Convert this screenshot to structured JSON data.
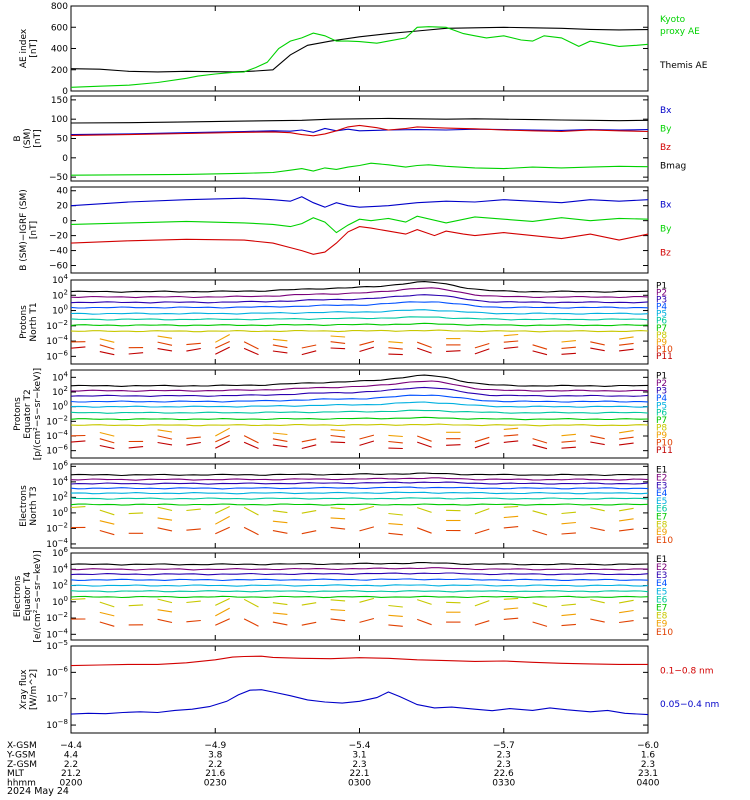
{
  "colors": {
    "black": "#000000",
    "blue": "#0000c8",
    "green": "#00d200",
    "red": "#d20000",
    "P": [
      "#000000",
      "#7a007a",
      "#2a00b0",
      "#0050ff",
      "#00b0e0",
      "#00c8a0",
      "#00c800",
      "#c8c800",
      "#f0a000",
      "#e04000",
      "#c00000"
    ]
  },
  "chart_data": [
    {
      "type": "line",
      "id": "p1",
      "ylabel": [
        "AE index",
        "[nT]"
      ],
      "ylim": [
        0,
        800
      ],
      "yscale": "linear",
      "yticks": [
        0,
        200,
        400,
        600,
        800
      ],
      "ytick_labels": [
        "0",
        "200",
        "400",
        "600",
        "800"
      ],
      "legend": [
        {
          "text": "Kyoto",
          "color": "#00d200"
        },
        {
          "text": "proxy AE",
          "color": "#00d200"
        },
        {
          "text": "Themis AE",
          "color": "#000000"
        }
      ],
      "series": [
        {
          "name": "Themis AE",
          "color": "#000000",
          "x": [
            0,
            5,
            10,
            15,
            20,
            25,
            28,
            32,
            35,
            38,
            41,
            45,
            50,
            55,
            60,
            65,
            70,
            75,
            80,
            85,
            90,
            95,
            100
          ],
          "y": [
            210,
            205,
            185,
            180,
            185,
            182,
            180,
            188,
            200,
            340,
            430,
            470,
            510,
            540,
            565,
            590,
            595,
            600,
            595,
            590,
            580,
            575,
            578
          ]
        },
        {
          "name": "proxy AE",
          "color": "#00d200",
          "x": [
            0,
            5,
            10,
            15,
            20,
            22,
            25,
            27,
            28,
            30,
            32,
            34,
            36,
            38,
            40,
            42,
            44,
            46,
            48,
            50,
            53,
            55,
            58,
            60,
            62,
            65,
            68,
            70,
            72,
            75,
            78,
            80,
            82,
            85,
            88,
            90,
            92,
            95,
            98,
            100
          ],
          "y": [
            35,
            45,
            55,
            80,
            120,
            140,
            160,
            170,
            175,
            180,
            220,
            270,
            400,
            470,
            500,
            545,
            520,
            470,
            470,
            465,
            450,
            470,
            500,
            600,
            605,
            600,
            540,
            520,
            500,
            520,
            480,
            470,
            520,
            500,
            420,
            470,
            450,
            420,
            430,
            440
          ]
        }
      ]
    },
    {
      "type": "line",
      "id": "p2",
      "ylabel": [
        "B",
        "(SM)",
        "[nT]"
      ],
      "ylim": [
        -60,
        160
      ],
      "yscale": "linear",
      "yticks": [
        -50,
        0,
        50,
        100,
        150
      ],
      "ytick_labels": [
        "−50",
        "0",
        "50",
        "100",
        "150"
      ],
      "legend": [
        {
          "text": "Bx",
          "color": "#0000c8"
        },
        {
          "text": "By",
          "color": "#00d200"
        },
        {
          "text": "Bz",
          "color": "#d20000"
        },
        {
          "text": "Bmag",
          "color": "#000000"
        }
      ],
      "series": [
        {
          "name": "Bmag",
          "color": "#000000",
          "x": [
            0,
            10,
            20,
            30,
            35,
            40,
            45,
            50,
            55,
            60,
            65,
            70,
            75,
            80,
            85,
            90,
            95,
            100
          ],
          "y": [
            90,
            91,
            93,
            95,
            96,
            97,
            100,
            101,
            102,
            101,
            100,
            101,
            100,
            99,
            98,
            97,
            96,
            97
          ]
        },
        {
          "name": "Bx",
          "color": "#0000c8",
          "x": [
            0,
            10,
            20,
            30,
            35,
            38,
            40,
            42,
            44,
            46,
            48,
            50,
            55,
            60,
            65,
            70,
            75,
            80,
            85,
            90,
            95,
            100
          ],
          "y": [
            60,
            62,
            65,
            68,
            70,
            69,
            72,
            66,
            76,
            70,
            74,
            70,
            72,
            73,
            72,
            74,
            73,
            72,
            71,
            73,
            72,
            73
          ]
        },
        {
          "name": "Bz",
          "color": "#d20000",
          "x": [
            0,
            10,
            20,
            30,
            35,
            38,
            40,
            42,
            44,
            46,
            48,
            50,
            53,
            55,
            58,
            60,
            65,
            70,
            75,
            80,
            85,
            90,
            95,
            100
          ],
          "y": [
            58,
            60,
            63,
            66,
            67,
            65,
            60,
            57,
            62,
            70,
            80,
            84,
            78,
            72,
            76,
            80,
            77,
            75,
            72,
            70,
            68,
            72,
            70,
            68
          ]
        },
        {
          "name": "By",
          "color": "#00d200",
          "x": [
            0,
            10,
            20,
            30,
            35,
            38,
            40,
            42,
            44,
            46,
            48,
            50,
            52,
            55,
            58,
            60,
            62,
            65,
            70,
            75,
            80,
            85,
            90,
            95,
            100
          ],
          "y": [
            -45,
            -44,
            -43,
            -40,
            -38,
            -32,
            -28,
            -34,
            -26,
            -30,
            -24,
            -20,
            -14,
            -18,
            -24,
            -20,
            -18,
            -22,
            -26,
            -28,
            -24,
            -26,
            -24,
            -22,
            -23
          ]
        }
      ]
    },
    {
      "type": "line",
      "id": "p3",
      "ylabel": [
        "B (SM)−IGRF (SM)",
        "[nT]"
      ],
      "ylim": [
        -70,
        45
      ],
      "yscale": "linear",
      "yticks": [
        -60,
        -40,
        -20,
        0,
        20,
        40
      ],
      "ytick_labels": [
        "−60",
        "−40",
        "−20",
        "0",
        "20",
        "40"
      ],
      "legend": [
        {
          "text": "Bx",
          "color": "#0000c8"
        },
        {
          "text": "By",
          "color": "#00d200"
        },
        {
          "text": "Bz",
          "color": "#d20000"
        }
      ],
      "series": [
        {
          "name": "Bx",
          "color": "#0000c8",
          "x": [
            0,
            10,
            20,
            30,
            35,
            38,
            40,
            42,
            44,
            46,
            48,
            50,
            55,
            60,
            65,
            70,
            75,
            80,
            85,
            90,
            95,
            100
          ],
          "y": [
            20,
            25,
            28,
            30,
            28,
            26,
            32,
            24,
            18,
            24,
            20,
            18,
            20,
            24,
            26,
            25,
            28,
            26,
            24,
            28,
            26,
            28
          ]
        },
        {
          "name": "By",
          "color": "#00d200",
          "x": [
            0,
            10,
            20,
            30,
            35,
            38,
            40,
            42,
            44,
            46,
            48,
            50,
            52,
            55,
            58,
            60,
            65,
            70,
            75,
            80,
            85,
            90,
            95,
            100
          ],
          "y": [
            -5,
            -3,
            -1,
            -3,
            -5,
            -8,
            -4,
            4,
            -2,
            -16,
            -6,
            2,
            0,
            3,
            -2,
            6,
            -3,
            5,
            2,
            -1,
            4,
            0,
            3,
            2
          ]
        },
        {
          "name": "Bz",
          "color": "#d20000",
          "x": [
            0,
            10,
            20,
            30,
            35,
            38,
            40,
            42,
            44,
            46,
            48,
            50,
            52,
            55,
            58,
            60,
            63,
            65,
            68,
            70,
            75,
            80,
            85,
            90,
            95,
            100
          ],
          "y": [
            -30,
            -27,
            -25,
            -26,
            -30,
            -36,
            -40,
            -45,
            -42,
            -30,
            -15,
            -8,
            -10,
            -14,
            -18,
            -12,
            -20,
            -14,
            -18,
            -20,
            -16,
            -20,
            -24,
            -18,
            -26,
            -18
          ]
        }
      ]
    },
    {
      "type": "line",
      "id": "p4",
      "ylabel": [
        "Protons",
        "North T1"
      ],
      "yscale": "log",
      "ylim": [
        1e-07,
        10000.0
      ],
      "ytick_exp": [
        -6,
        -4,
        -2,
        0,
        2,
        4
      ],
      "legend_prefix": "P",
      "channels": [
        {
          "name": "P1",
          "base": 300,
          "bump": 18
        },
        {
          "name": "P2",
          "base": 60,
          "bump": 15
        },
        {
          "name": "P3",
          "base": 12,
          "bump": 10
        },
        {
          "name": "P4",
          "base": 2.5,
          "bump": 6
        },
        {
          "name": "P5",
          "base": 0.4,
          "bump": 3
        },
        {
          "name": "P6",
          "base": 0.07,
          "bump": 2
        },
        {
          "name": "P7",
          "base": 0.012,
          "bump": 1.5
        },
        {
          "name": "P8",
          "base": 0.002,
          "bump": 1.2
        },
        {
          "name": "P9",
          "base": 0.0002,
          "bump": 1
        },
        {
          "name": "P10",
          "base": 3e-05,
          "bump": 1
        },
        {
          "name": "P11",
          "base": 5e-06,
          "bump": 1
        }
      ]
    },
    {
      "type": "line",
      "id": "p5",
      "ylabel": [
        "Protons",
        "Equator T2",
        "[p/(cm²−s−sr−keV)]"
      ],
      "yscale": "log",
      "ylim": [
        1e-07,
        100000.0
      ],
      "ytick_exp": [
        -6,
        -4,
        -2,
        0,
        2,
        4
      ],
      "legend_prefix": "P",
      "channels": [
        {
          "name": "P1",
          "base": 700,
          "bump": 25
        },
        {
          "name": "P2",
          "base": 150,
          "bump": 20
        },
        {
          "name": "P3",
          "base": 30,
          "bump": 14
        },
        {
          "name": "P4",
          "base": 5,
          "bump": 8
        },
        {
          "name": "P5",
          "base": 1,
          "bump": 4
        },
        {
          "name": "P6",
          "base": 0.15,
          "bump": 2
        },
        {
          "name": "P7",
          "base": 0.02,
          "bump": 1.5
        },
        {
          "name": "P8",
          "base": 0.003,
          "bump": 1.2
        },
        {
          "name": "P9",
          "base": 0.0003,
          "bump": 1
        },
        {
          "name": "P10",
          "base": 4e-05,
          "bump": 1
        },
        {
          "name": "P11",
          "base": 6e-06,
          "bump": 1
        }
      ]
    },
    {
      "type": "line",
      "id": "p6",
      "ylabel": [
        "Electrons",
        "North T3"
      ],
      "yscale": "log",
      "ylim": [
        3e-05,
        2000000.0
      ],
      "ytick_exp": [
        -4,
        -2,
        0,
        2,
        4,
        6
      ],
      "legend_prefix": "E",
      "channels": [
        {
          "name": "E1",
          "base": 80000,
          "bump": 1.5
        },
        {
          "name": "E2",
          "base": 20000,
          "bump": 1.5
        },
        {
          "name": "E3",
          "base": 6000,
          "bump": 1.5
        },
        {
          "name": "E4",
          "base": 1500,
          "bump": 1.3
        },
        {
          "name": "E5",
          "base": 350,
          "bump": 1.2
        },
        {
          "name": "E6",
          "base": 70,
          "bump": 1.1
        },
        {
          "name": "E7",
          "base": 12,
          "bump": 1
        },
        {
          "name": "E8",
          "base": 2,
          "bump": 1
        },
        {
          "name": "E9",
          "base": 0.1,
          "bump": 1
        },
        {
          "name": "E10",
          "base": 0.005,
          "bump": 1
        }
      ]
    },
    {
      "type": "line",
      "id": "p7",
      "ylabel": [
        "Electrons",
        "Equator T4",
        "[e/(cm²−s−sr−keV)]"
      ],
      "yscale": "log",
      "ylim": [
        2e-05,
        1000000.0
      ],
      "ytick_exp": [
        -4,
        -2,
        0,
        2,
        4,
        6
      ],
      "legend_prefix": "E",
      "channels": [
        {
          "name": "E1",
          "base": 40000,
          "bump": 1.5
        },
        {
          "name": "E2",
          "base": 10000,
          "bump": 1.4
        },
        {
          "name": "E3",
          "base": 2500,
          "bump": 1.3
        },
        {
          "name": "E4",
          "base": 500,
          "bump": 1.2
        },
        {
          "name": "E5",
          "base": 100,
          "bump": 1.1
        },
        {
          "name": "E6",
          "base": 20,
          "bump": 1
        },
        {
          "name": "E7",
          "base": 4,
          "bump": 1
        },
        {
          "name": "E8",
          "base": 0.8,
          "bump": 1
        },
        {
          "name": "E9",
          "base": 0.05,
          "bump": 1
        },
        {
          "name": "E10",
          "base": 0.003,
          "bump": 1
        }
      ]
    },
    {
      "type": "line",
      "id": "p8",
      "ylabel": [
        "Xray flux",
        "[W/m^2]"
      ],
      "yscale": "log",
      "ylim": [
        5e-09,
        1e-05
      ],
      "ytick_exp": [
        -8,
        -7,
        -6,
        -5
      ],
      "legend": [
        {
          "text": "0.1−0.8 nm",
          "color": "#d20000"
        },
        {
          "text": "0.05−0.4 nm",
          "color": "#0000c8"
        }
      ],
      "series": [
        {
          "name": "0.1−0.8 nm",
          "color": "#d20000",
          "x": [
            0,
            5,
            10,
            15,
            20,
            25,
            28,
            30,
            33,
            35,
            40,
            45,
            50,
            55,
            60,
            65,
            70,
            75,
            80,
            85,
            90,
            95,
            100
          ],
          "y": [
            1.8e-06,
            1.9e-06,
            2e-06,
            2e-06,
            2.3e-06,
            3e-06,
            3.8e-06,
            4e-06,
            4.1e-06,
            3.7e-06,
            3.4e-06,
            3.3e-06,
            3.6e-06,
            3.4e-06,
            3e-06,
            2.8e-06,
            2.6e-06,
            2.7e-06,
            2.4e-06,
            2.2e-06,
            2.1e-06,
            2e-06,
            2e-06
          ]
        },
        {
          "name": "0.05−0.4 nm",
          "color": "#0000c8",
          "x": [
            0,
            3,
            6,
            9,
            12,
            15,
            18,
            21,
            24,
            27,
            29,
            31,
            33,
            35,
            38,
            41,
            44,
            47,
            50,
            53,
            55,
            57,
            60,
            63,
            66,
            70,
            73,
            76,
            80,
            83,
            86,
            90,
            93,
            96,
            100
          ],
          "y": [
            2.6e-08,
            2.8e-08,
            2.7e-08,
            3e-08,
            3.2e-08,
            3e-08,
            3.6e-08,
            4e-08,
            5e-08,
            8e-08,
            1.4e-07,
            2.1e-07,
            2.2e-07,
            1.8e-07,
            1.3e-07,
            9e-08,
            7.5e-08,
            6.8e-08,
            8e-08,
            1.1e-07,
            1.8e-07,
            1.2e-07,
            6e-08,
            4.5e-08,
            4.8e-08,
            4e-08,
            3.5e-08,
            4.2e-08,
            3.6e-08,
            4.5e-08,
            3.8e-08,
            3.2e-08,
            3.6e-08,
            2.8e-08,
            2.5e-08
          ]
        }
      ]
    }
  ],
  "axis": {
    "rows": [
      {
        "label": "X-GSM",
        "values": [
          "−4.4",
          "−4.9",
          "−5.4",
          "−5.7",
          "−6.0"
        ]
      },
      {
        "label": "Y-GSM",
        "values": [
          "4.4",
          "3.8",
          "3.1",
          "2.3",
          "1.6"
        ]
      },
      {
        "label": "Z-GSM",
        "values": [
          "2.2",
          "2.2",
          "2.3",
          "2.3",
          "2.3"
        ]
      },
      {
        "label": "MLT",
        "values": [
          "21.2",
          "21.6",
          "22.1",
          "22.6",
          "23.1"
        ]
      },
      {
        "label": "hhmm",
        "values": [
          "0200",
          "0230",
          "0300",
          "0330",
          "0400"
        ]
      }
    ],
    "date": "2024 May 24"
  }
}
